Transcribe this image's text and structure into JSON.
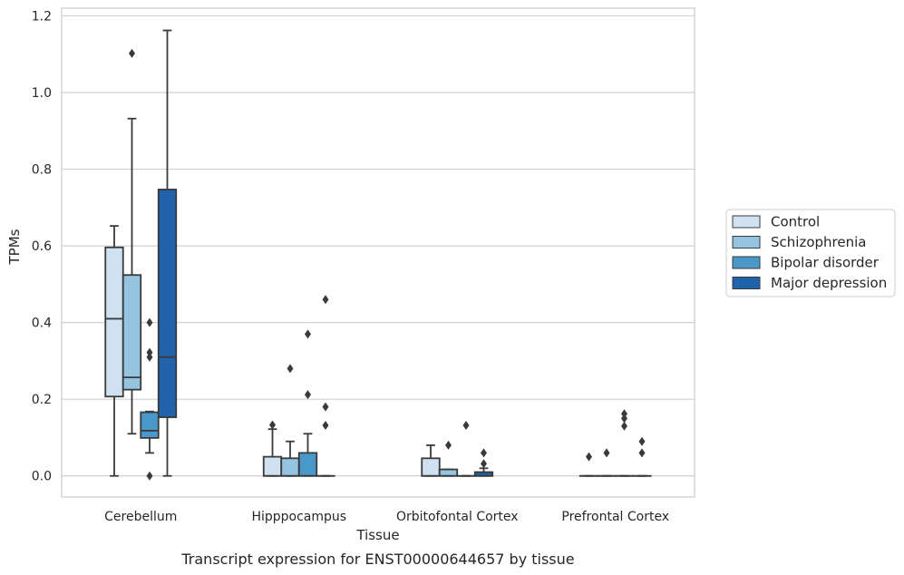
{
  "caption": "Transcript expression for ENST00000644657 by tissue",
  "chart_data": {
    "type": "boxplot",
    "xlabel": "Tissue",
    "ylabel": "TPMs",
    "ylim": [
      -0.055,
      1.22
    ],
    "yticks": [
      0.0,
      0.2,
      0.4,
      0.6,
      0.8,
      1.0,
      1.2
    ],
    "ytick_labels": [
      "0.0",
      "0.2",
      "0.4",
      "0.6",
      "0.8",
      "1.0",
      "1.2"
    ],
    "grid": "horizontal",
    "legend_position": "right",
    "categories": [
      "Cerebellum",
      "Hipppocampus",
      "Orbitofontal Cortex",
      "Prefrontal Cortex"
    ],
    "series": [
      {
        "name": "Control",
        "color": "#d0e1f2",
        "boxes": [
          {
            "whislo": 0.0,
            "q1": 0.207,
            "med": 0.41,
            "q3": 0.596,
            "whishi": 0.652,
            "fliers": []
          },
          {
            "whislo": 0.0,
            "q1": 0.0,
            "med": 0.0,
            "q3": 0.05,
            "whishi": 0.122,
            "fliers": [
              0.133
            ]
          },
          {
            "whislo": 0.0,
            "q1": 0.0,
            "med": 0.0,
            "q3": 0.046,
            "whishi": 0.08,
            "fliers": []
          },
          {
            "whislo": 0.0,
            "q1": 0.0,
            "med": 0.0,
            "q3": 0.0,
            "whishi": 0.0,
            "fliers": [
              0.05
            ]
          }
        ]
      },
      {
        "name": "Schizophrenia",
        "color": "#94c4df",
        "boxes": [
          {
            "whislo": 0.11,
            "q1": 0.225,
            "med": 0.257,
            "q3": 0.524,
            "whishi": 0.932,
            "fliers": [
              1.102
            ]
          },
          {
            "whislo": 0.0,
            "q1": 0.0,
            "med": 0.0,
            "q3": 0.046,
            "whishi": 0.09,
            "fliers": [
              0.28
            ]
          },
          {
            "whislo": 0.0,
            "q1": 0.0,
            "med": 0.0,
            "q3": 0.017,
            "whishi": 0.017,
            "fliers": [
              0.08
            ]
          },
          {
            "whislo": 0.0,
            "q1": 0.0,
            "med": 0.0,
            "q3": 0.0,
            "whishi": 0.0,
            "fliers": [
              0.06
            ]
          }
        ]
      },
      {
        "name": "Bipolar disorder",
        "color": "#4a98c9",
        "boxes": [
          {
            "whislo": 0.06,
            "q1": 0.099,
            "med": 0.118,
            "q3": 0.166,
            "whishi": 0.168,
            "fliers": [
              0.4,
              0.322,
              0.31,
              0.0
            ]
          },
          {
            "whislo": 0.0,
            "q1": 0.0,
            "med": 0.0,
            "q3": 0.06,
            "whishi": 0.11,
            "fliers": [
              0.37,
              0.212
            ]
          },
          {
            "whislo": 0.0,
            "q1": 0.0,
            "med": 0.0,
            "q3": 0.0,
            "whishi": 0.0,
            "fliers": [
              0.132
            ]
          },
          {
            "whislo": 0.0,
            "q1": 0.0,
            "med": 0.0,
            "q3": 0.0,
            "whishi": 0.0,
            "fliers": [
              0.162,
              0.15,
              0.13
            ]
          }
        ]
      },
      {
        "name": "Major depression",
        "color": "#2063ab",
        "boxes": [
          {
            "whislo": 0.0,
            "q1": 0.153,
            "med": 0.31,
            "q3": 0.747,
            "whishi": 1.162,
            "fliers": []
          },
          {
            "whislo": 0.0,
            "q1": 0.0,
            "med": 0.0,
            "q3": 0.0,
            "whishi": 0.0,
            "fliers": [
              0.46,
              0.18,
              0.132
            ]
          },
          {
            "whislo": 0.0,
            "q1": 0.0,
            "med": 0.0,
            "q3": 0.01,
            "whishi": 0.02,
            "fliers": [
              0.06,
              0.032
            ]
          },
          {
            "whislo": 0.0,
            "q1": 0.0,
            "med": 0.0,
            "q3": 0.0,
            "whishi": 0.0,
            "fliers": [
              0.09,
              0.06
            ]
          }
        ]
      }
    ]
  }
}
